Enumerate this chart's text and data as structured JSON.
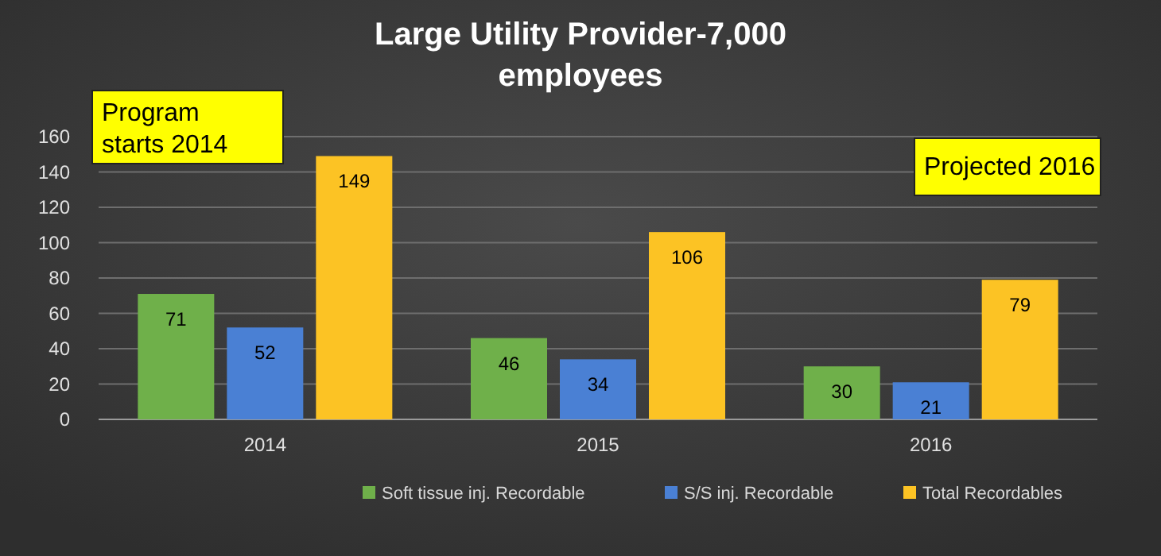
{
  "chart_data": {
    "type": "bar",
    "title": "Large Utility Provider-7,000 employees",
    "categories": [
      "2014",
      "2015",
      "2016"
    ],
    "series": [
      {
        "name": "Soft tissue inj. Recordable",
        "color": "#6fb04a",
        "values": [
          71,
          46,
          30
        ]
      },
      {
        "name": "S/S inj. Recordable",
        "color": "#4a80d4",
        "values": [
          52,
          34,
          21
        ]
      },
      {
        "name": "Total Recordables",
        "color": "#fcc324",
        "values": [
          149,
          106,
          79
        ]
      }
    ],
    "ylim": [
      0,
      160
    ],
    "yticks": [
      0,
      20,
      40,
      60,
      80,
      100,
      120,
      140,
      160
    ],
    "grid": "y",
    "legend": "bottom",
    "data_labels": true,
    "annotations": [
      "Program starts 2014",
      "Projected 2016"
    ]
  }
}
